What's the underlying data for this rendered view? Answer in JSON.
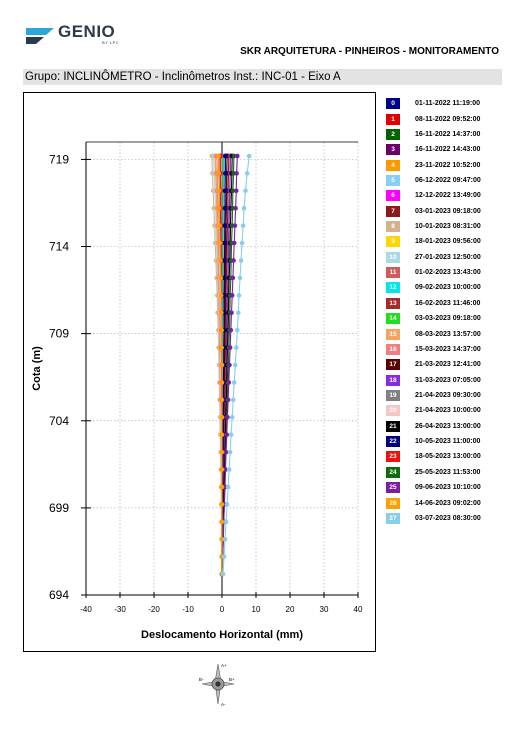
{
  "header": {
    "logo_text": "GENIO",
    "logo_sub": "BY LPC",
    "project_title": "SKR ARQUITETURA - PINHEIROS - MONITORAMENTO",
    "group_label": "Grupo: INCLINÔMETRO - Inclinômetros Inst.: INC-01 -  Eixo A"
  },
  "compass": {
    "a_plus": "A+",
    "a_minus": "A-",
    "b_plus": "B+",
    "b_minus": "B-"
  },
  "chart_data": {
    "type": "line",
    "xlabel": "Deslocamento Horizontal (mm)",
    "ylabel": "Cota (m)",
    "xlim": [
      -40,
      40
    ],
    "ylim": [
      694,
      720
    ],
    "x_ticks": [
      -40,
      -30,
      -20,
      -10,
      0,
      10,
      20,
      30,
      40
    ],
    "y_ticks": [
      694,
      699,
      704,
      709,
      714,
      719
    ],
    "grid": true,
    "legend_position": "right",
    "depths": [
      719.2,
      718.2,
      717.2,
      716.2,
      715.2,
      714.2,
      713.2,
      712.2,
      711.2,
      710.2,
      709.2,
      708.2,
      707.2,
      706.2,
      705.2,
      704.2,
      703.2,
      702.2,
      701.2,
      700.2,
      699.2,
      698.2,
      697.2,
      696.2,
      695.2
    ],
    "series": [
      {
        "name": "01-11-2022 11:19:00",
        "badge": "0",
        "color": "#00008b",
        "x": [
          0,
          0,
          0,
          0,
          0,
          0,
          0,
          0,
          0,
          0,
          0,
          0,
          0,
          0,
          0,
          0,
          0,
          0,
          0,
          0,
          0,
          0,
          0,
          0,
          0
        ]
      },
      {
        "name": "08-11-2022 09:52:00",
        "badge": "1",
        "color": "#e00000",
        "x": [
          -1.0,
          -0.9,
          -0.8,
          -0.7,
          -0.6,
          -0.5,
          -0.4,
          -0.3,
          -0.3,
          -0.2,
          -0.2,
          -0.1,
          -0.1,
          0,
          0,
          0,
          0,
          0,
          0,
          0,
          0,
          0,
          0,
          0,
          0
        ]
      },
      {
        "name": "16-11-2022 14:37:00",
        "badge": "2",
        "color": "#006400",
        "x": [
          1.0,
          0.9,
          0.8,
          0.8,
          0.7,
          0.7,
          0.6,
          0.6,
          0.5,
          0.5,
          0.4,
          0.4,
          0.3,
          0.3,
          0.2,
          0.2,
          0.2,
          0.1,
          0.1,
          0.1,
          0.1,
          0,
          0,
          0,
          0
        ]
      },
      {
        "name": "16-11-2022 14:43:00",
        "badge": "3",
        "color": "#6a006a",
        "x": [
          1.5,
          1.4,
          1.3,
          1.2,
          1.1,
          1.0,
          0.9,
          0.9,
          0.8,
          0.7,
          0.7,
          0.6,
          0.5,
          0.5,
          0.4,
          0.3,
          0.3,
          0.2,
          0.2,
          0.1,
          0.1,
          0.1,
          0,
          0,
          0
        ]
      },
      {
        "name": "23-11-2022 10:52:00",
        "badge": "4",
        "color": "#ff9900",
        "x": [
          -2.0,
          -1.8,
          -1.6,
          -1.5,
          -1.3,
          -1.2,
          -1.0,
          -0.9,
          -0.8,
          -0.7,
          -0.6,
          -0.5,
          -0.4,
          -0.3,
          -0.3,
          -0.2,
          -0.2,
          -0.1,
          -0.1,
          0,
          0,
          0,
          0,
          0,
          0
        ]
      },
      {
        "name": "06-12-2022 09:47:00",
        "badge": "5",
        "color": "#87cefa",
        "x": [
          0.8,
          0.7,
          0.7,
          0.6,
          0.6,
          0.5,
          0.5,
          0.4,
          0.4,
          0.4,
          0.3,
          0.3,
          0.3,
          0.2,
          0.2,
          0.2,
          0.1,
          0.1,
          0.1,
          0.1,
          0,
          0,
          0,
          0,
          0
        ]
      },
      {
        "name": "12-12-2022 13:49:00",
        "badge": "6",
        "color": "#ff00ff",
        "x": [
          -0.5,
          -0.5,
          -0.4,
          -0.4,
          -0.3,
          -0.3,
          -0.3,
          -0.2,
          -0.2,
          -0.2,
          -0.1,
          -0.1,
          -0.1,
          0,
          0,
          0,
          0,
          0,
          0,
          0,
          0,
          0,
          0,
          0,
          0
        ]
      },
      {
        "name": "03-01-2023 09:18:00",
        "badge": "7",
        "color": "#8b1a1a",
        "x": [
          2.0,
          1.9,
          1.8,
          1.7,
          1.6,
          1.5,
          1.4,
          1.3,
          1.2,
          1.1,
          1.0,
          0.9,
          0.8,
          0.7,
          0.6,
          0.5,
          0.4,
          0.4,
          0.3,
          0.2,
          0.2,
          0.1,
          0.1,
          0,
          0
        ]
      },
      {
        "name": "10-01-2023 08:31:00",
        "badge": "8",
        "color": "#d2b48c",
        "x": [
          -3.0,
          -2.8,
          -2.6,
          -2.4,
          -2.2,
          -2.0,
          -1.8,
          -1.6,
          -1.4,
          -1.3,
          -1.1,
          -1.0,
          -0.9,
          -0.8,
          -0.7,
          -0.6,
          -0.5,
          -0.4,
          -0.3,
          -0.2,
          -0.2,
          -0.1,
          -0.1,
          0,
          0
        ]
      },
      {
        "name": "18-01-2023 09:56:00",
        "badge": "9",
        "color": "#ffd700",
        "x": [
          -1.5,
          -1.4,
          -1.3,
          -1.2,
          -1.1,
          -1.0,
          -0.9,
          -0.8,
          -0.7,
          -0.6,
          -0.6,
          -0.5,
          -0.4,
          -0.4,
          -0.3,
          -0.3,
          -0.2,
          -0.2,
          -0.1,
          -0.1,
          0,
          0,
          0,
          0,
          0
        ]
      },
      {
        "name": "27-01-2023 12:50:00",
        "badge": "10",
        "color": "#add8e6",
        "x": [
          -2.5,
          -2.3,
          -2.1,
          -1.9,
          -1.8,
          -1.6,
          -1.5,
          -1.3,
          -1.2,
          -1.1,
          -1.0,
          -0.9,
          -0.8,
          -0.7,
          -0.6,
          -0.5,
          -0.4,
          -0.3,
          -0.3,
          -0.2,
          -0.1,
          -0.1,
          0,
          0,
          0
        ]
      },
      {
        "name": "01-02-2023 13:43:00",
        "badge": "11",
        "color": "#cd5c5c",
        "x": [
          -1.0,
          -0.9,
          -0.8,
          -0.8,
          -0.7,
          -0.6,
          -0.6,
          -0.5,
          -0.5,
          -0.4,
          -0.4,
          -0.3,
          -0.3,
          -0.2,
          -0.2,
          -0.2,
          -0.1,
          -0.1,
          -0.1,
          0,
          0,
          0,
          0,
          0,
          0
        ]
      },
      {
        "name": "09-02-2023 10:00:00",
        "badge": "12",
        "color": "#00e5ee",
        "x": [
          0.5,
          0.5,
          0.4,
          0.4,
          0.4,
          0.3,
          0.3,
          0.3,
          0.3,
          0.2,
          0.2,
          0.2,
          0.2,
          0.1,
          0.1,
          0.1,
          0.1,
          0.1,
          0,
          0,
          0,
          0,
          0,
          0,
          0
        ]
      },
      {
        "name": "16-02-2023 11:46:00",
        "badge": "13",
        "color": "#a52a2a",
        "x": [
          2.5,
          2.4,
          2.3,
          2.1,
          2.0,
          1.9,
          1.8,
          1.7,
          1.6,
          1.4,
          1.3,
          1.2,
          1.1,
          1.0,
          0.9,
          0.8,
          0.7,
          0.6,
          0.5,
          0.4,
          0.3,
          0.2,
          0.1,
          0.1,
          0
        ]
      },
      {
        "name": "03-03-2023 09:18:00",
        "badge": "14",
        "color": "#22dd22",
        "x": [
          0.3,
          0.3,
          0.3,
          0.2,
          0.2,
          0.2,
          0.2,
          0.2,
          0.1,
          0.1,
          0.1,
          0.1,
          0.1,
          0.1,
          0,
          0,
          0,
          0,
          0,
          0,
          0,
          0,
          0,
          0,
          0
        ]
      },
      {
        "name": "08-03-2023 13:57:00",
        "badge": "15",
        "color": "#f4a460",
        "x": [
          -2.0,
          -1.9,
          -1.7,
          -1.6,
          -1.5,
          -1.3,
          -1.2,
          -1.1,
          -1.0,
          -0.9,
          -0.8,
          -0.7,
          -0.6,
          -0.6,
          -0.5,
          -0.4,
          -0.3,
          -0.3,
          -0.2,
          -0.2,
          -0.1,
          -0.1,
          0,
          0,
          0
        ]
      },
      {
        "name": "15-03-2023 14:37:00",
        "badge": "16",
        "color": "#f08080",
        "x": [
          -1.5,
          -1.4,
          -1.3,
          -1.2,
          -1.1,
          -1.0,
          -0.9,
          -0.9,
          -0.8,
          -0.7,
          -0.6,
          -0.6,
          -0.5,
          -0.4,
          -0.4,
          -0.3,
          -0.3,
          -0.2,
          -0.2,
          -0.1,
          -0.1,
          0,
          0,
          0,
          0
        ]
      },
      {
        "name": "21-03-2023 12:41:00",
        "badge": "17",
        "color": "#5c0000",
        "x": [
          1.5,
          1.4,
          1.4,
          1.3,
          1.2,
          1.2,
          1.1,
          1.0,
          1.0,
          0.9,
          0.8,
          0.8,
          0.7,
          0.6,
          0.6,
          0.5,
          0.4,
          0.4,
          0.3,
          0.3,
          0.2,
          0.2,
          0.1,
          0.1,
          0
        ]
      },
      {
        "name": "31-03-2023 07:05:00",
        "badge": "18",
        "color": "#8a2be2",
        "x": [
          2.5,
          2.4,
          2.3,
          2.2,
          2.1,
          2.0,
          1.9,
          1.8,
          1.7,
          1.6,
          1.5,
          1.4,
          1.3,
          1.2,
          1.1,
          1.0,
          0.8,
          0.7,
          0.6,
          0.5,
          0.4,
          0.3,
          0.2,
          0.1,
          0
        ]
      },
      {
        "name": "21-04-2023 09:30:00",
        "badge": "19",
        "color": "#808080",
        "x": [
          0,
          0,
          0,
          0,
          0,
          0,
          0,
          0,
          0,
          0,
          0,
          0,
          0,
          0,
          0,
          0,
          0,
          0,
          0,
          0,
          0,
          0,
          0,
          0,
          0
        ]
      },
      {
        "name": "21-04-2023 10:00:00",
        "badge": "20",
        "color": "#f5c6c6",
        "x": [
          -1.0,
          -0.9,
          -0.9,
          -0.8,
          -0.8,
          -0.7,
          -0.7,
          -0.6,
          -0.6,
          -0.5,
          -0.5,
          -0.4,
          -0.4,
          -0.3,
          -0.3,
          -0.3,
          -0.2,
          -0.2,
          -0.1,
          -0.1,
          -0.1,
          0,
          0,
          0,
          0
        ]
      },
      {
        "name": "26-04-2023 13:00:00",
        "badge": "21",
        "color": "#000000",
        "x": [
          3.0,
          2.9,
          2.8,
          2.6,
          2.5,
          2.4,
          2.3,
          2.1,
          2.0,
          1.9,
          1.8,
          1.6,
          1.5,
          1.4,
          1.3,
          1.1,
          1.0,
          0.9,
          0.8,
          0.6,
          0.5,
          0.4,
          0.3,
          0.1,
          0
        ]
      },
      {
        "name": "10-05-2023 11:00:00",
        "badge": "22",
        "color": "#000080",
        "x": [
          1.0,
          1.0,
          0.9,
          0.9,
          0.8,
          0.8,
          0.7,
          0.7,
          0.6,
          0.6,
          0.6,
          0.5,
          0.5,
          0.4,
          0.4,
          0.3,
          0.3,
          0.3,
          0.2,
          0.2,
          0.1,
          0.1,
          0.1,
          0,
          0
        ]
      },
      {
        "name": "18-05-2023 13:00:00",
        "badge": "23",
        "color": "#ee1111",
        "x": [
          -0.5,
          -0.5,
          -0.4,
          -0.4,
          -0.4,
          -0.3,
          -0.3,
          -0.3,
          -0.2,
          -0.2,
          -0.2,
          -0.2,
          -0.1,
          -0.1,
          -0.1,
          0,
          0,
          0,
          0,
          0,
          0,
          0,
          0,
          0,
          0
        ]
      },
      {
        "name": "25-05-2023 11:53:00",
        "badge": "24",
        "color": "#0b6e0b",
        "x": [
          3.5,
          3.4,
          3.2,
          3.1,
          3.0,
          2.8,
          2.7,
          2.6,
          2.4,
          2.3,
          2.2,
          2.0,
          1.9,
          1.7,
          1.6,
          1.4,
          1.3,
          1.1,
          1.0,
          0.8,
          0.7,
          0.5,
          0.4,
          0.2,
          0
        ]
      },
      {
        "name": "09-06-2023 10:10:00",
        "badge": "25",
        "color": "#7b1fa2",
        "x": [
          4.5,
          4.3,
          4.2,
          4.0,
          3.8,
          3.6,
          3.4,
          3.2,
          3.0,
          2.8,
          2.6,
          2.4,
          2.2,
          2.0,
          1.8,
          1.6,
          1.4,
          1.2,
          1.0,
          0.9,
          0.7,
          0.5,
          0.4,
          0.2,
          0
        ]
      },
      {
        "name": "14-06-2023 09:02:00",
        "badge": "26",
        "color": "#ffa000",
        "x": [
          -1.0,
          -0.9,
          -0.8,
          -0.8,
          -0.7,
          -0.6,
          -0.5,
          -0.4,
          -0.3,
          -0.2,
          -0.1,
          -0.1,
          0,
          0,
          0,
          0,
          0,
          0,
          0,
          0,
          0,
          0,
          0,
          0,
          0
        ]
      },
      {
        "name": "03-07-2023 08:30:00",
        "badge": "27",
        "color": "#87ceeb",
        "x": [
          8.0,
          7.4,
          6.9,
          6.5,
          6.2,
          5.9,
          5.6,
          5.3,
          5.0,
          4.8,
          4.5,
          4.2,
          3.9,
          3.6,
          3.3,
          3.0,
          2.7,
          2.4,
          2.1,
          1.8,
          1.5,
          1.2,
          0.9,
          0.6,
          0.3
        ]
      }
    ]
  }
}
